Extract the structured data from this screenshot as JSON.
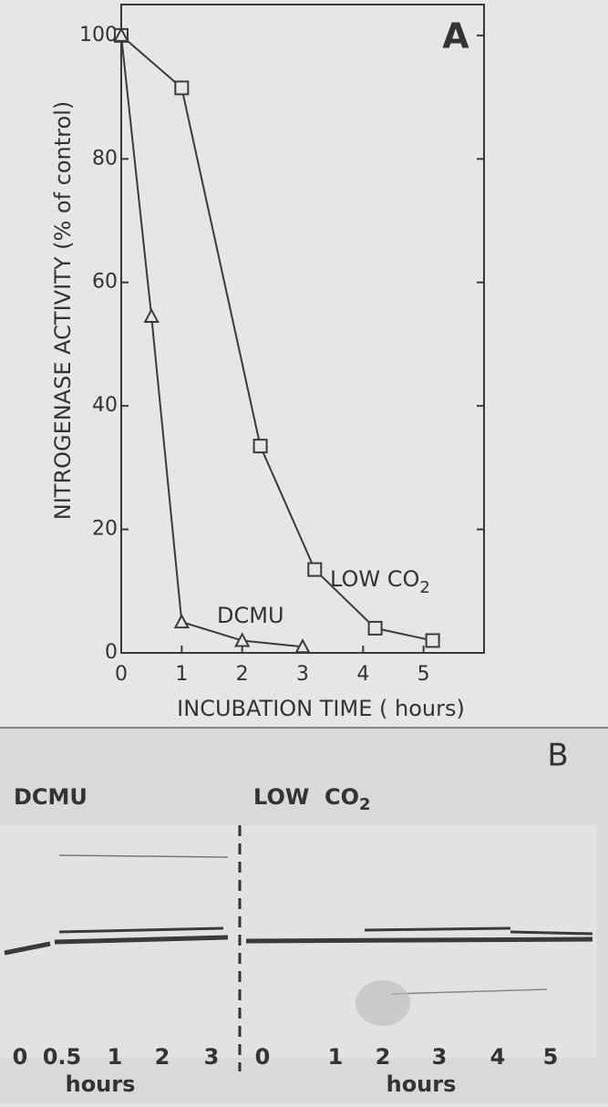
{
  "chart_data": {
    "type": "line",
    "panel_label": "A",
    "y_label": "NITROGENASE ACTIVITY (% of control)",
    "x_label": "INCUBATION TIME ( hours)",
    "xlim": [
      0,
      6
    ],
    "xticks": [
      0,
      1,
      2,
      3,
      4,
      5
    ],
    "ylim": [
      0,
      105
    ],
    "yticks": [
      0,
      20,
      40,
      60,
      80,
      100
    ],
    "series": [
      {
        "marker": "square",
        "color": "#3a3a3a",
        "x": [
          0,
          1,
          2.3,
          3.2,
          4.2,
          5.15
        ],
        "values": [
          100,
          91.5,
          33.5,
          13.5,
          4,
          2
        ]
      },
      {
        "marker": "triangle",
        "color": "#3a3a3a",
        "x": [
          0,
          0.5,
          1,
          2,
          3
        ],
        "values": [
          100,
          54.5,
          5,
          2,
          1
        ]
      }
    ],
    "annotations": [
      {
        "text": "LOW CO",
        "subscript": "2"
      },
      {
        "text": "DCMU"
      }
    ]
  },
  "gel": {
    "panel_label": "B",
    "groups": [
      {
        "title": "DCMU",
        "lanes": [
          "0",
          "0.5",
          "1",
          "2",
          "3"
        ],
        "unit": "hours"
      },
      {
        "title": "LOW  CO",
        "title_subscript": "2",
        "lanes": [
          "0",
          "1",
          "2",
          "3",
          "4",
          "5"
        ],
        "unit": "hours"
      }
    ]
  }
}
